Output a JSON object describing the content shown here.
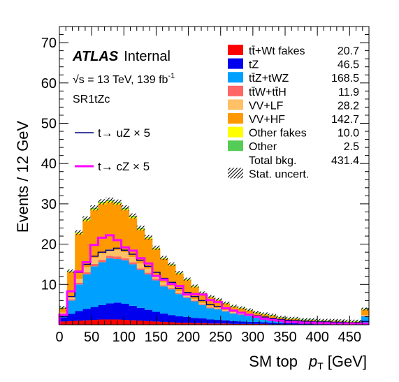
{
  "chart_data": {
    "type": "bar",
    "stacked": true,
    "xlabel_main": "SM top",
    "xlabel_var": "p",
    "xlabel_sub": "T",
    "xlabel_unit": "[GeV]",
    "ylabel": "Events / 12 GeV",
    "xlim": [
      0,
      480
    ],
    "ylim": [
      0,
      74
    ],
    "bin_width": 12,
    "x_ticks": [
      0,
      50,
      100,
      150,
      200,
      250,
      300,
      350,
      400,
      450
    ],
    "x_tick_labels": [
      "0",
      "50",
      "100",
      "150",
      "200",
      "250",
      "300",
      "350",
      "400",
      "450"
    ],
    "y_ticks": [
      10,
      20,
      30,
      40,
      50,
      60,
      70
    ],
    "y_tick_labels": [
      "10",
      "20",
      "30",
      "40",
      "50",
      "60",
      "70"
    ],
    "bin_lows": [
      0,
      12,
      24,
      36,
      48,
      60,
      72,
      84,
      96,
      108,
      120,
      132,
      144,
      156,
      168,
      180,
      192,
      204,
      216,
      228,
      240,
      252,
      264,
      276,
      288,
      300,
      312,
      324,
      336,
      348,
      360,
      372,
      384,
      396,
      408,
      420,
      432,
      444,
      456,
      468
    ],
    "series": [
      {
        "name": "tt̄+Wt fakes",
        "color": "#ff0000",
        "values": [
          0.8,
          0.9,
          1.0,
          1.1,
          1.2,
          1.3,
          1.3,
          1.3,
          1.2,
          1.1,
          1.0,
          0.9,
          0.8,
          0.7,
          0.6,
          0.5,
          0.5,
          0.4,
          0.4,
          0.3,
          0.3,
          0.3,
          0.2,
          0.2,
          0.2,
          0.2,
          0.2,
          0.1,
          0.1,
          0.1,
          0.1,
          0.1,
          0.1,
          0.1,
          0.1,
          0.1,
          0.1,
          0.1,
          0.1,
          0.2
        ]
      },
      {
        "name": "tZ",
        "color": "#0000ee",
        "values": [
          1.0,
          1.8,
          2.4,
          2.8,
          3.2,
          3.6,
          4.0,
          4.2,
          4.0,
          3.6,
          3.2,
          2.8,
          2.4,
          2.1,
          1.8,
          1.6,
          1.4,
          1.3,
          1.2,
          1.0,
          0.9,
          0.8,
          0.7,
          0.6,
          0.5,
          0.5,
          0.4,
          0.4,
          0.3,
          0.3,
          0.3,
          0.2,
          0.2,
          0.2,
          0.2,
          0.2,
          0.2,
          0.1,
          0.1,
          0.3
        ]
      },
      {
        "name": "tt̄Z+tWZ",
        "color": "#00a0ff",
        "values": [
          0.7,
          3.3,
          6.6,
          8.6,
          10.1,
          10.6,
          11.2,
          10.8,
          10.8,
          10.3,
          9.4,
          8.8,
          7.8,
          6.7,
          6.4,
          5.5,
          4.8,
          4.1,
          3.3,
          2.8,
          2.6,
          2.2,
          1.9,
          1.7,
          1.5,
          1.2,
          1.0,
          0.9,
          0.7,
          0.5,
          0.5,
          0.4,
          0.4,
          0.3,
          0.3,
          0.3,
          0.2,
          0.2,
          0.2,
          1.6
        ]
      },
      {
        "name": "tt̄W+tt̄H",
        "color": "#ff6666",
        "values": [
          0.2,
          0.3,
          0.4,
          0.5,
          0.6,
          0.6,
          0.6,
          0.6,
          0.5,
          0.5,
          0.4,
          0.4,
          0.4,
          0.3,
          0.3,
          0.2,
          0.2,
          0.2,
          0.2,
          0.2,
          0.1,
          0.1,
          0.1,
          0.1,
          0.1,
          0.1,
          0.1,
          0.1,
          0.1,
          0.1,
          0.1,
          0.1,
          0.1,
          0.1,
          0.1,
          0.1,
          0.1,
          0.1,
          0.1,
          0.1
        ]
      },
      {
        "name": "VV+LF",
        "color": "#ffc066",
        "values": [
          0.3,
          0.6,
          1.0,
          1.3,
          1.5,
          1.6,
          1.6,
          1.6,
          1.5,
          1.3,
          1.2,
          1.0,
          0.8,
          0.7,
          0.6,
          0.5,
          0.5,
          0.4,
          0.3,
          0.3,
          0.3,
          0.2,
          0.2,
          0.2,
          0.2,
          0.1,
          0.1,
          0.1,
          0.1,
          0.1,
          0.1,
          0.1,
          0.1,
          0.1,
          0.1,
          0.1,
          0.1,
          0.1,
          0.1,
          0.2
        ]
      },
      {
        "name": "VV+HF",
        "color": "#ff9900",
        "values": [
          1.1,
          6.1,
          11.1,
          11.4,
          11.8,
          12.2,
          11.6,
          11.3,
          10.4,
          9.6,
          8.3,
          7.4,
          6.5,
          5.8,
          5.0,
          4.3,
          3.6,
          2.9,
          2.3,
          2.2,
          1.9,
          1.6,
          1.3,
          1.2,
          1.0,
          0.8,
          0.7,
          0.6,
          0.4,
          0.3,
          0.3,
          0.2,
          0.2,
          0.1,
          0.1,
          0.1,
          0.1,
          0.1,
          0.1,
          1.3
        ]
      },
      {
        "name": "Other fakes",
        "color": "#ffff00",
        "values": [
          0.1,
          0.2,
          0.3,
          0.4,
          0.4,
          0.4,
          0.4,
          0.4,
          0.4,
          0.4,
          0.3,
          0.3,
          0.3,
          0.2,
          0.2,
          0.2,
          0.2,
          0.2,
          0.1,
          0.1,
          0.1,
          0.1,
          0.1,
          0.1,
          0.1,
          0.1,
          0.1,
          0.1,
          0.1,
          0.1,
          0.1,
          0.1,
          0.1,
          0.1,
          0.1,
          0.1,
          0.1,
          0.1,
          0.1,
          0.1
        ]
      },
      {
        "name": "Other",
        "color": "#55cc55",
        "values": [
          0.1,
          0.1,
          0.1,
          0.2,
          0.2,
          0.2,
          0.2,
          0.2,
          0.2,
          0.2,
          0.2,
          0.1,
          0.1,
          0.1,
          0.1,
          0.1,
          0.1,
          0.1,
          0.1,
          0.1,
          0.1,
          0.1,
          0.1,
          0.1,
          0.1,
          0.1,
          0.1,
          0.1,
          0.1,
          0.1,
          0.1,
          0.1,
          0.1,
          0.1,
          0.1,
          0.1,
          0.1,
          0.1,
          0.1,
          0.1
        ]
      }
    ],
    "legend_rows": [
      {
        "label": "tt̄+Wt fakes",
        "value": "20.7",
        "color": "#ff0000"
      },
      {
        "label": "tZ",
        "value": "46.5",
        "color": "#0000ee"
      },
      {
        "label": "tt̄Z+tWZ",
        "value": "168.5",
        "color": "#00a0ff"
      },
      {
        "label": "tt̄W+tt̄H",
        "value": "11.9",
        "color": "#ff6666"
      },
      {
        "label": "VV+LF",
        "value": "28.2",
        "color": "#ffc066"
      },
      {
        "label": "VV+HF",
        "value": "142.7",
        "color": "#ff9900"
      },
      {
        "label": "Other fakes",
        "value": "10.0",
        "color": "#ffff00"
      },
      {
        "label": "Other",
        "value": "2.5",
        "color": "#55cc55"
      }
    ],
    "total_label": "Total bkg.",
    "total_value": "431.4",
    "uncert_label": "Stat. uncert.",
    "signals": [
      {
        "name": "t→ uZ × 5",
        "color": "#000080",
        "width": 1.5,
        "values": [
          2,
          7,
          13,
          15,
          17,
          18,
          18.5,
          19,
          18.5,
          17.5,
          16,
          14.5,
          13,
          11.5,
          10.5,
          9,
          8,
          7,
          6,
          5,
          4.5,
          4,
          3.5,
          3,
          2.6,
          2.2,
          1.9,
          1.6,
          1.3,
          1.1,
          1.0,
          0.9,
          0.8,
          0.7,
          0.7,
          0.6,
          0.6,
          0.5,
          0.5,
          0.8
        ]
      },
      {
        "name": "t→ cZ × 5",
        "color": "#ff00ff",
        "width": 3,
        "values": [
          2.5,
          8.3,
          13.2,
          15.5,
          19.8,
          21.6,
          22.2,
          21.0,
          19.2,
          18.4,
          16.5,
          15.2,
          12.1,
          11.2,
          10.1,
          9.6,
          7.5,
          7.6,
          7.5,
          6.1,
          5.6,
          4.1,
          3.5,
          3.0,
          2.5,
          2.0,
          1.5,
          1.2,
          1.0,
          0.7,
          0.6,
          0.5,
          0.5,
          0.4,
          0.4,
          0.3,
          0.3,
          0.3,
          0.2,
          0.3
        ]
      }
    ],
    "atlas_label": "ATLAS",
    "atlas_status": "Internal",
    "energy_label": "√s = 13 TeV, 139 fb",
    "energy_sup": "-1",
    "region_label": "SR1tZc"
  }
}
